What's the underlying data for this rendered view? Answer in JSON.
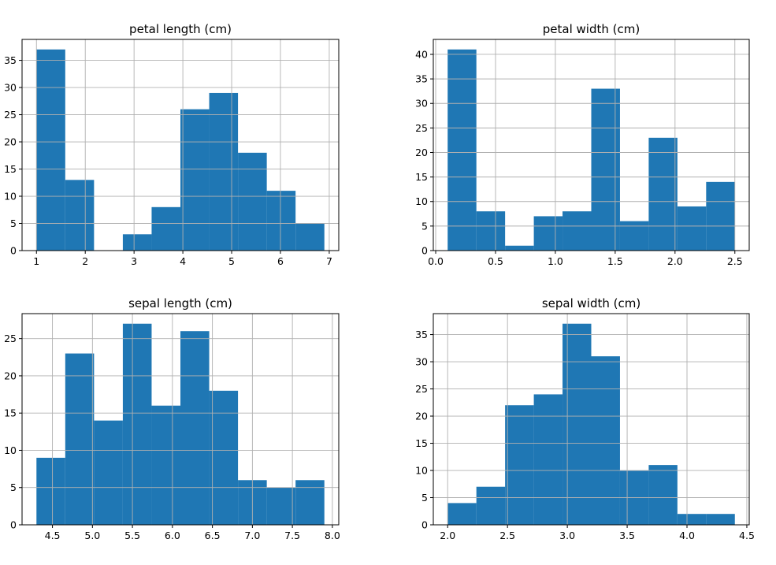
{
  "chart_data": [
    {
      "type": "bar",
      "title": "petal length (cm)",
      "bin_edges": [
        1.0,
        1.59,
        2.18,
        2.77,
        3.36,
        3.95,
        4.54,
        5.13,
        5.72,
        6.31,
        6.9
      ],
      "values": [
        37,
        13,
        0,
        3,
        8,
        26,
        29,
        18,
        11,
        5
      ],
      "xlim": [
        0.705,
        7.195
      ],
      "ylim": [
        0,
        38.85
      ],
      "xticks": [
        1,
        2,
        3,
        4,
        5,
        6,
        7
      ],
      "xtick_labels": [
        "1",
        "2",
        "3",
        "4",
        "5",
        "6",
        "7"
      ],
      "yticks": [
        0,
        5,
        10,
        15,
        20,
        25,
        30,
        35
      ],
      "ytick_labels": [
        "0",
        "5",
        "10",
        "15",
        "20",
        "25",
        "30",
        "35"
      ],
      "color": "#1f77b4",
      "grid": true
    },
    {
      "type": "bar",
      "title": "petal width (cm)",
      "bin_edges": [
        0.1,
        0.34,
        0.58,
        0.82,
        1.06,
        1.3,
        1.54,
        1.78,
        2.02,
        2.26,
        2.5
      ],
      "values": [
        41,
        8,
        1,
        7,
        8,
        33,
        6,
        23,
        9,
        14
      ],
      "xlim": [
        -0.02,
        2.62
      ],
      "ylim": [
        0,
        43.05
      ],
      "xticks": [
        0.0,
        0.5,
        1.0,
        1.5,
        2.0,
        2.5
      ],
      "xtick_labels": [
        "0.0",
        "0.5",
        "1.0",
        "1.5",
        "2.0",
        "2.5"
      ],
      "yticks": [
        0,
        5,
        10,
        15,
        20,
        25,
        30,
        35,
        40
      ],
      "ytick_labels": [
        "0",
        "5",
        "10",
        "15",
        "20",
        "25",
        "30",
        "35",
        "40"
      ],
      "color": "#1f77b4",
      "grid": true
    },
    {
      "type": "bar",
      "title": "sepal length (cm)",
      "bin_edges": [
        4.3,
        4.66,
        5.02,
        5.38,
        5.74,
        6.1,
        6.46,
        6.82,
        7.18,
        7.54,
        7.9
      ],
      "values": [
        9,
        23,
        14,
        27,
        16,
        26,
        18,
        6,
        5,
        6
      ],
      "xlim": [
        4.12,
        8.08
      ],
      "ylim": [
        0,
        28.35
      ],
      "xticks": [
        4.5,
        5.0,
        5.5,
        6.0,
        6.5,
        7.0,
        7.5,
        8.0
      ],
      "xtick_labels": [
        "4.5",
        "5.0",
        "5.5",
        "6.0",
        "6.5",
        "7.0",
        "7.5",
        "8.0"
      ],
      "yticks": [
        0,
        5,
        10,
        15,
        20,
        25
      ],
      "ytick_labels": [
        "0",
        "5",
        "10",
        "15",
        "20",
        "25"
      ],
      "color": "#1f77b4",
      "grid": true
    },
    {
      "type": "bar",
      "title": "sepal width (cm)",
      "bin_edges": [
        2.0,
        2.24,
        2.48,
        2.72,
        2.96,
        3.2,
        3.44,
        3.68,
        3.92,
        4.16,
        4.4
      ],
      "values": [
        4,
        7,
        22,
        24,
        37,
        31,
        10,
        11,
        2,
        2
      ],
      "xlim": [
        1.88,
        4.52
      ],
      "ylim": [
        0,
        38.85
      ],
      "xticks": [
        2.0,
        2.5,
        3.0,
        3.5,
        4.0,
        4.5
      ],
      "xtick_labels": [
        "2.0",
        "2.5",
        "3.0",
        "3.5",
        "4.0",
        "4.5"
      ],
      "yticks": [
        0,
        5,
        10,
        15,
        20,
        25,
        30,
        35
      ],
      "ytick_labels": [
        "0",
        "5",
        "10",
        "15",
        "20",
        "25",
        "30",
        "35"
      ],
      "color": "#1f77b4",
      "grid": true
    }
  ]
}
